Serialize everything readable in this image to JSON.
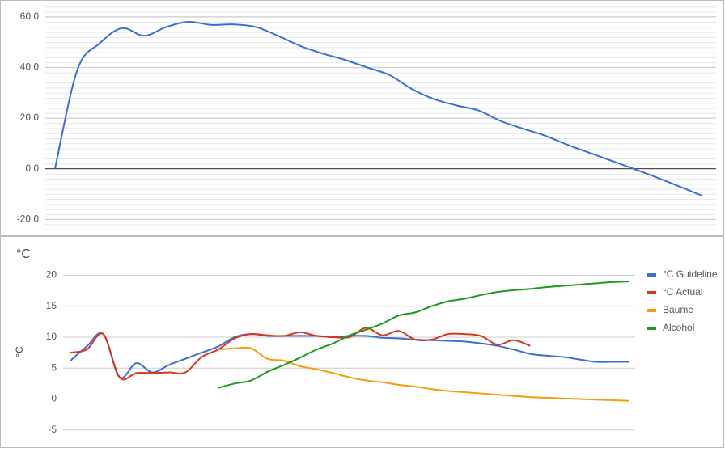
{
  "chart_data": [
    {
      "type": "line",
      "series": [
        {
          "color": "#3b6fd4",
          "values": [
            0,
            39,
            49.5,
            55.5,
            52.5,
            56,
            58,
            56.8,
            57,
            56,
            52.5,
            48.5,
            45.5,
            43,
            40,
            37,
            31.5,
            27.5,
            25,
            23,
            18.8,
            15.8,
            13,
            9.4,
            6.2,
            3,
            -0.2,
            -3.5,
            -7,
            -10.6
          ]
        }
      ],
      "ylim": [
        -26,
        66
      ],
      "yticks": [
        {
          "value": -20,
          "label": "-20.0"
        },
        {
          "value": 0,
          "label": "0.0"
        },
        {
          "value": 20,
          "label": "20.0"
        },
        {
          "value": 40,
          "label": "40.0"
        },
        {
          "value": 60,
          "label": "60.0"
        }
      ],
      "grid": true
    },
    {
      "type": "line",
      "title": "°C",
      "y_label": "°C",
      "series": [
        {
          "name": "°C Guideline",
          "color": "#3b6fd4",
          "values": [
            6.2,
            8.5,
            10.5,
            3.5,
            5.8,
            4.3,
            5.5,
            6.5,
            7.5,
            8.5,
            10,
            10.5,
            10.2,
            10.2,
            10.2,
            10.2,
            10,
            10.2,
            10.2,
            9.9,
            9.8,
            9.6,
            9.5,
            9.4,
            9.3,
            9,
            8.6,
            8,
            7.3,
            7,
            6.8,
            6.4,
            6,
            6,
            6
          ]
        },
        {
          "name": "°C Actual",
          "color": "#d8361f",
          "values": [
            7.5,
            8,
            10.5,
            3.5,
            4.2,
            4.2,
            4.3,
            4.3,
            6.8,
            8,
            9.8,
            10.5,
            10.3,
            10.2,
            10.8,
            10.2,
            10,
            10,
            11.5,
            10.3,
            11,
            9.6,
            9.6,
            10.5,
            10.5,
            10.2,
            8.8,
            9.5,
            8.6,
            null,
            null,
            null,
            null,
            null,
            null
          ]
        },
        {
          "name": "Baume",
          "color": "#f59d0f",
          "values": [
            null,
            null,
            null,
            null,
            null,
            null,
            null,
            null,
            null,
            8,
            8.2,
            8.2,
            6.5,
            6.2,
            5.3,
            4.8,
            4.2,
            3.5,
            3,
            2.7,
            2.3,
            2,
            1.6,
            1.3,
            1.1,
            0.9,
            0.7,
            0.5,
            0.3,
            0.2,
            0.1,
            0,
            -0.1,
            -0.2,
            -0.3
          ]
        },
        {
          "name": "Alcohol",
          "color": "#1f9a1f",
          "values": [
            null,
            null,
            null,
            null,
            null,
            null,
            null,
            null,
            null,
            1.8,
            2.5,
            3,
            4.4,
            5.5,
            6.7,
            8,
            9,
            10.3,
            11.2,
            12.2,
            13.5,
            14,
            15,
            15.8,
            16.2,
            16.8,
            17.3,
            17.6,
            17.8,
            18.1,
            18.3,
            18.5,
            18.7,
            18.9,
            19
          ]
        }
      ],
      "ylim": [
        -7,
        21.5
      ],
      "yticks": [
        -5,
        0,
        5,
        10,
        15,
        20
      ],
      "grid": true,
      "legend": "right"
    }
  ]
}
